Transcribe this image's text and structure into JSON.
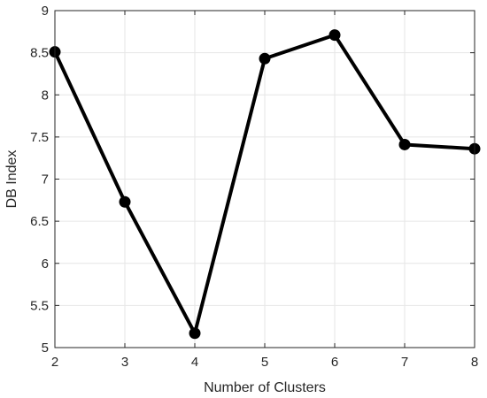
{
  "chart_data": {
    "type": "line",
    "title": "",
    "xlabel": "Number of Clusters",
    "ylabel": "DB Index",
    "x": [
      2,
      3,
      4,
      5,
      6,
      7,
      8
    ],
    "series": [
      {
        "values": [
          8.51,
          6.73,
          5.17,
          8.43,
          8.71,
          7.41,
          7.36
        ]
      }
    ],
    "xlim": [
      2,
      8
    ],
    "ylim": [
      5,
      9
    ],
    "xticks": [
      "2",
      "3",
      "4",
      "5",
      "6",
      "7",
      "8"
    ],
    "yticks": [
      "5",
      "5.5",
      "6",
      "6.5",
      "7",
      "7.5",
      "8",
      "8.5",
      "9"
    ],
    "grid": true,
    "line_color": "#000000",
    "marker": "filled-circle"
  }
}
